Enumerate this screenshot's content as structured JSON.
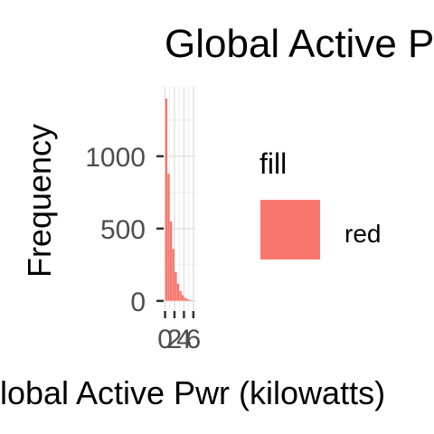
{
  "chart_data": {
    "type": "bar",
    "title": "Global Active Power",
    "xlabel": "Global Active Pwr (kilowatts)",
    "ylabel": "Frequency",
    "x_ticks": [
      0,
      2,
      4,
      6
    ],
    "x_tick_labels": [
      "0",
      "2",
      "4",
      "6"
    ],
    "y_ticks": [
      0,
      500,
      1000
    ],
    "y_tick_labels": [
      "0",
      "500",
      "1000"
    ],
    "xlim": [
      -0.3,
      6.6
    ],
    "ylim": [
      -70,
      1480
    ],
    "grid": true,
    "bin_width": 0.5,
    "bins": [
      {
        "x": 0.25,
        "value": 1400
      },
      {
        "x": 0.75,
        "value": 880
      },
      {
        "x": 1.25,
        "value": 550
      },
      {
        "x": 1.75,
        "value": 360
      },
      {
        "x": 2.25,
        "value": 200
      },
      {
        "x": 2.75,
        "value": 120
      },
      {
        "x": 3.25,
        "value": 70
      },
      {
        "x": 3.75,
        "value": 40
      },
      {
        "x": 4.25,
        "value": 22
      },
      {
        "x": 4.75,
        "value": 12
      },
      {
        "x": 5.25,
        "value": 6
      },
      {
        "x": 5.75,
        "value": 3
      }
    ],
    "bar_color": "#F8766D",
    "legend": {
      "title": "fill",
      "entries": [
        {
          "label": "red",
          "color": "#F8766D"
        }
      ],
      "position": "right"
    }
  }
}
